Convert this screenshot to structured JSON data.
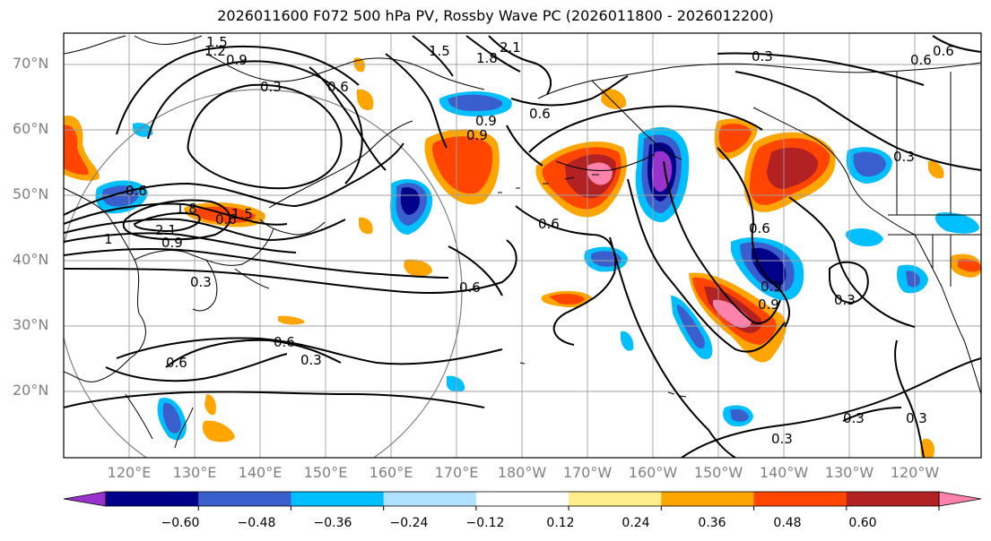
{
  "title": "2026011600 F072 500 hPa PV, Rossby Wave PC (2026011800 - 2026012200)",
  "lat_labels": [
    "70°N",
    "60°N",
    "50°N",
    "40°N",
    "30°N",
    "20°N"
  ],
  "lon_labels": [
    "120°E",
    "130°E",
    "140°E",
    "150°E",
    "160°E",
    "170°E",
    "180°W",
    "170°W",
    "160°W",
    "150°W",
    "140°W",
    "130°W",
    "120°W"
  ],
  "colorbar": {
    "ticks": [
      "−0.60",
      "−0.48",
      "−0.36",
      "−0.24",
      "−0.12",
      "0.12",
      "0.24",
      "0.36",
      "0.48",
      "0.60"
    ],
    "colors": [
      "#9932cc",
      "#00008b",
      "#3a5fcd",
      "#00bfff",
      "#b0e2ff",
      "#ffffff",
      "#ffec8b",
      "#ffa500",
      "#ff4500",
      "#b22222",
      "#ff82ab"
    ]
  },
  "contour_labels": [
    "1.5",
    "1.2",
    "0.9",
    "0.3",
    "0.6",
    "1.5",
    "2.1",
    "1.8",
    "0.6",
    "0.3",
    "0.9",
    "0.6",
    "0.6",
    "0.6",
    "1.8",
    "2.1",
    "1.5",
    "1",
    "0.9",
    "0.9",
    "0.6",
    "0.3",
    "0.6",
    "0.3",
    "0.6",
    "0.6",
    "0.9",
    "0.6",
    "0.3",
    "0.3",
    "0.3",
    "0.3",
    "0.3",
    "0.9",
    "0.6"
  ]
}
